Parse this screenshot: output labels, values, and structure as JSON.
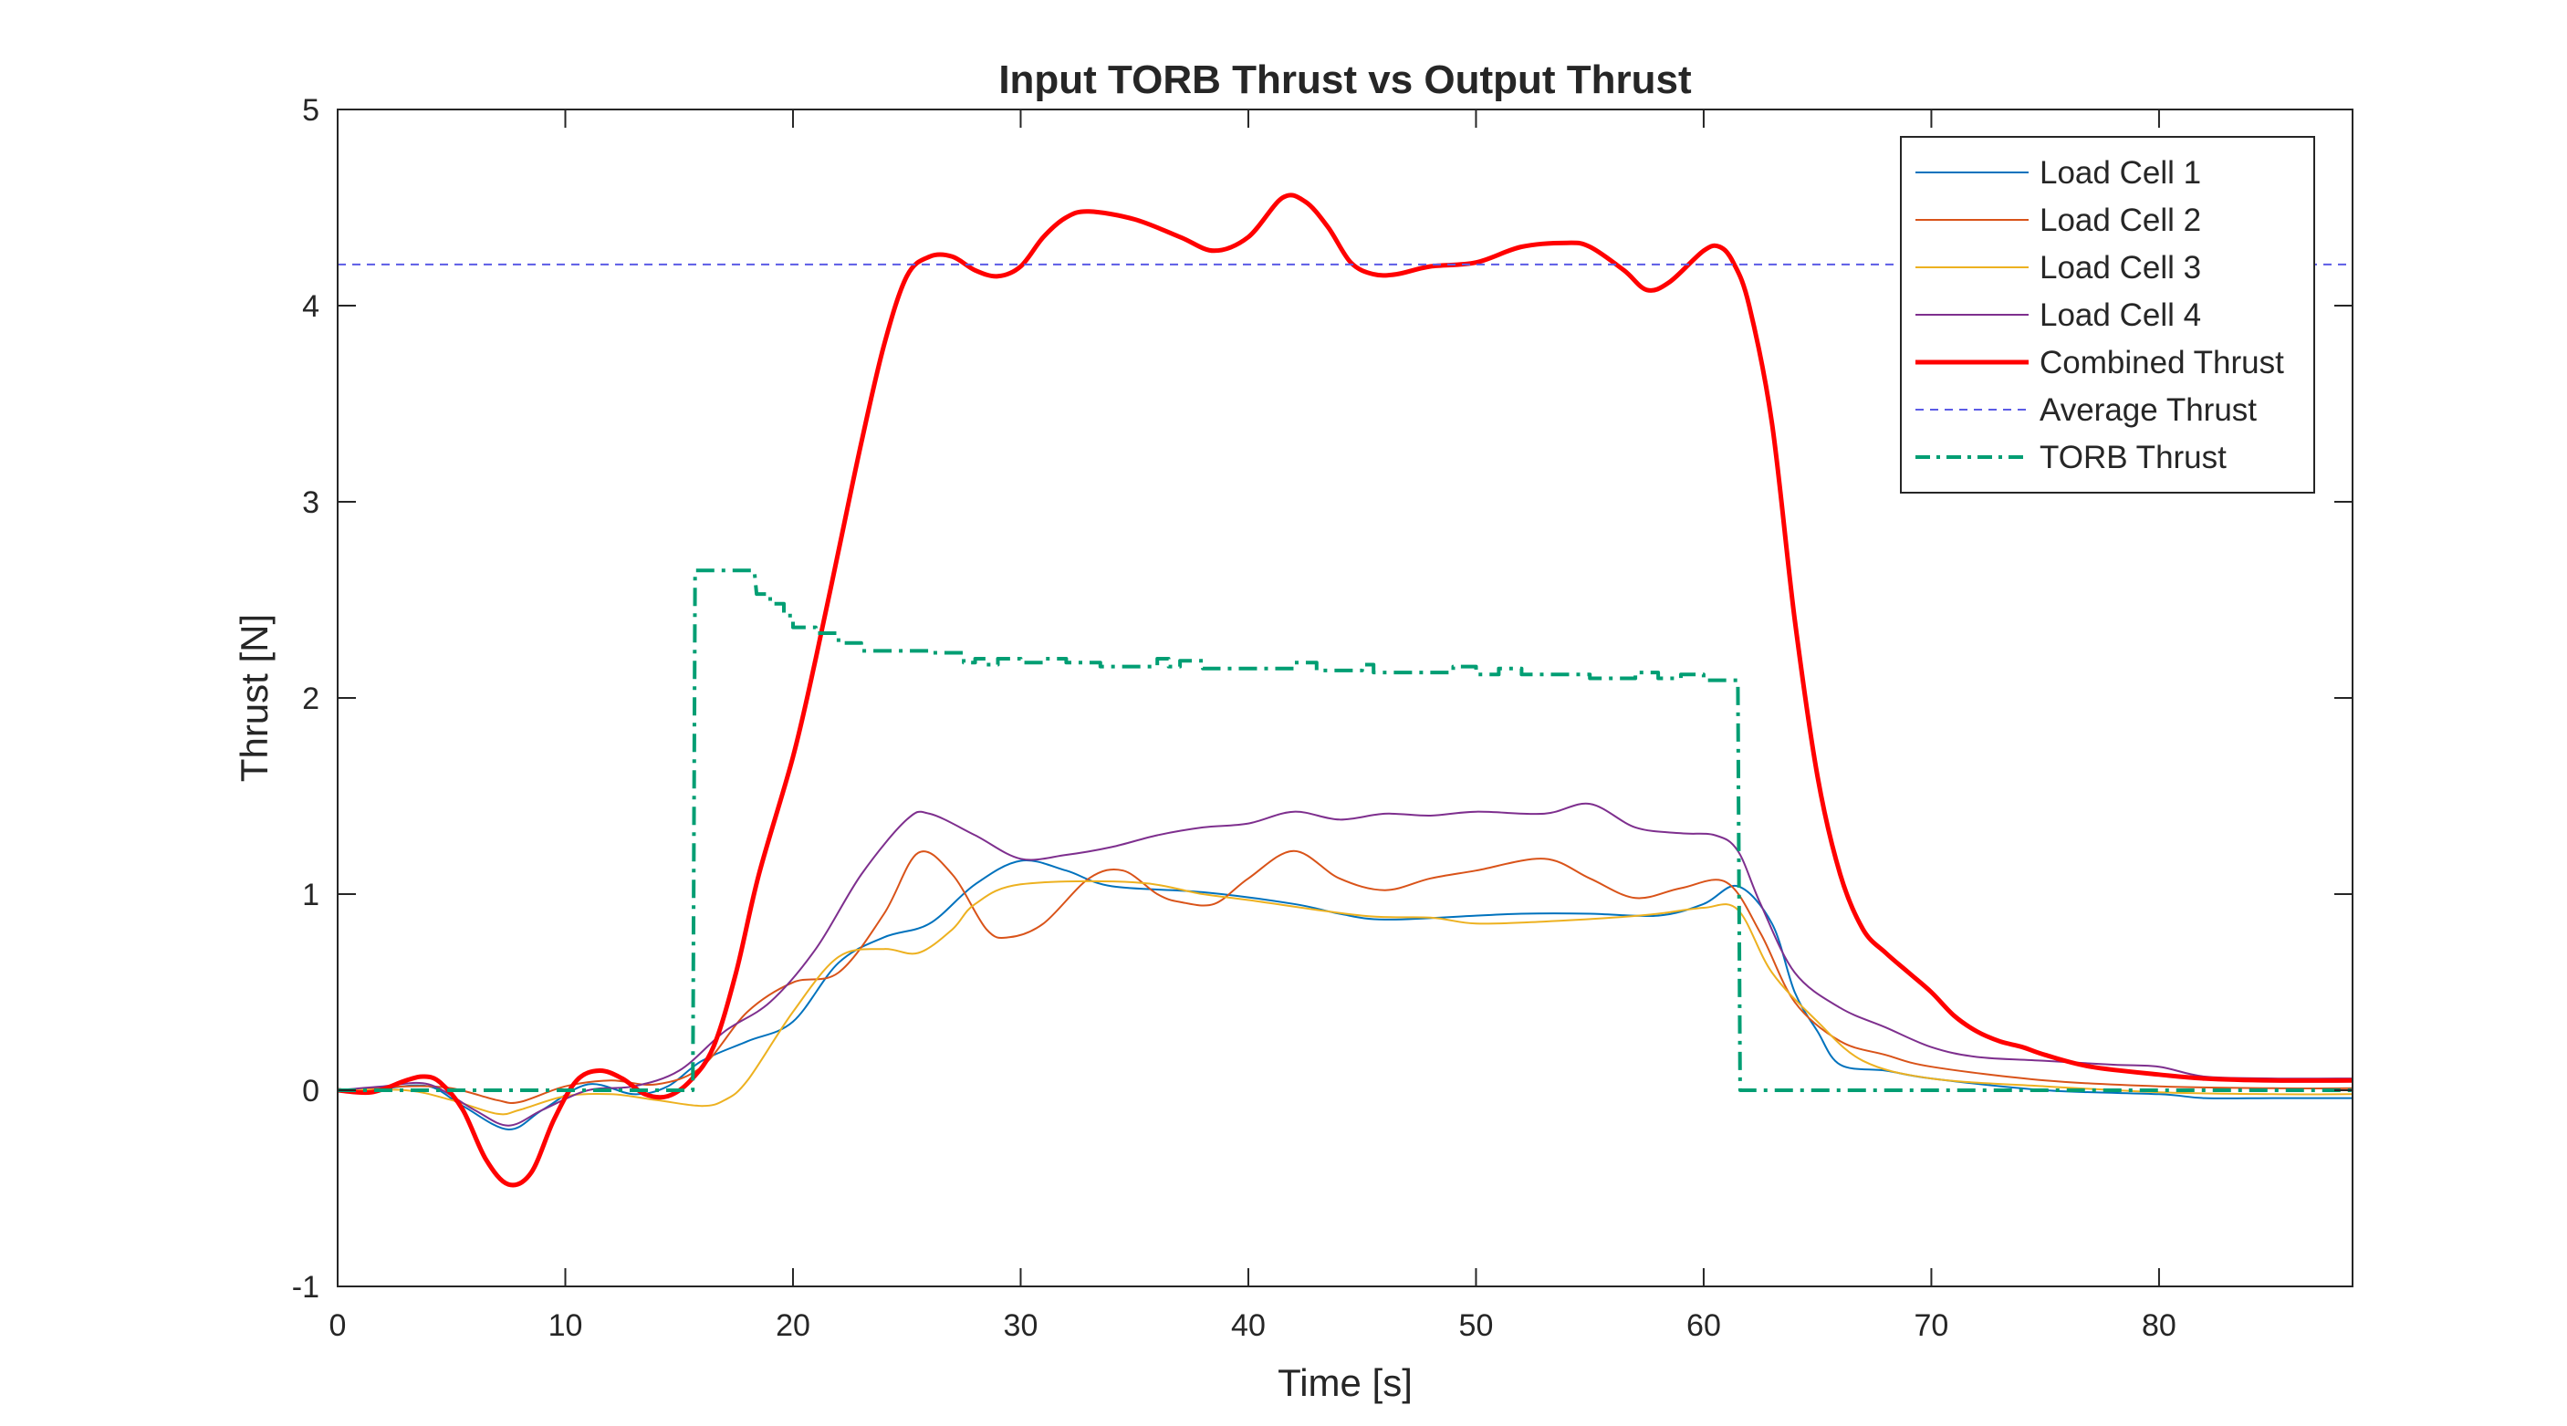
{
  "chart_data": {
    "type": "line",
    "title": "Input TORB Thrust vs Output Thrust",
    "xlabel": "Time [s]",
    "ylabel": "Thrust [N]",
    "xlim": [
      0,
      88.5
    ],
    "ylim": [
      -1,
      5
    ],
    "xticks": [
      0,
      10,
      20,
      30,
      40,
      50,
      60,
      70,
      80
    ],
    "yticks": [
      -1,
      0,
      1,
      2,
      3,
      4,
      5
    ],
    "grid": false,
    "box": true,
    "legend_position": "top-right",
    "series": [
      {
        "name": "Load Cell 1",
        "color": "#0072BD",
        "style": "solid",
        "width": "thin",
        "points": [
          [
            0,
            0
          ],
          [
            2,
            0.01
          ],
          [
            4,
            0.02
          ],
          [
            5.5,
            -0.08
          ],
          [
            7.5,
            -0.2
          ],
          [
            9,
            -0.1
          ],
          [
            11,
            0.03
          ],
          [
            13,
            -0.02
          ],
          [
            14.5,
            0.02
          ],
          [
            16,
            0.15
          ],
          [
            18,
            0.25
          ],
          [
            20,
            0.35
          ],
          [
            22,
            0.65
          ],
          [
            24,
            0.78
          ],
          [
            26,
            0.85
          ],
          [
            28,
            1.05
          ],
          [
            30,
            1.17
          ],
          [
            32,
            1.12
          ],
          [
            34,
            1.04
          ],
          [
            38,
            1.01
          ],
          [
            42,
            0.95
          ],
          [
            44,
            0.9
          ],
          [
            46,
            0.87
          ],
          [
            50,
            0.89
          ],
          [
            52,
            0.9
          ],
          [
            55,
            0.9
          ],
          [
            58,
            0.89
          ],
          [
            60,
            0.95
          ],
          [
            61.5,
            1.04
          ],
          [
            63,
            0.85
          ],
          [
            64,
            0.5
          ],
          [
            65,
            0.3
          ],
          [
            66,
            0.13
          ],
          [
            68,
            0.1
          ],
          [
            70,
            0.06
          ],
          [
            75,
            0.0
          ],
          [
            80,
            -0.02
          ],
          [
            82,
            -0.04
          ],
          [
            85,
            -0.04
          ],
          [
            88.5,
            -0.04
          ]
        ]
      },
      {
        "name": "Load Cell 2",
        "color": "#D95319",
        "style": "solid",
        "width": "thin",
        "points": [
          [
            0,
            0
          ],
          [
            3,
            0.02
          ],
          [
            5,
            0.01
          ],
          [
            7,
            -0.05
          ],
          [
            8,
            -0.06
          ],
          [
            10,
            0.02
          ],
          [
            12,
            0.05
          ],
          [
            14,
            0.03
          ],
          [
            16,
            0.12
          ],
          [
            18,
            0.4
          ],
          [
            20,
            0.55
          ],
          [
            22,
            0.6
          ],
          [
            24,
            0.9
          ],
          [
            25.5,
            1.21
          ],
          [
            27,
            1.1
          ],
          [
            28.5,
            0.82
          ],
          [
            29.5,
            0.78
          ],
          [
            31,
            0.85
          ],
          [
            33,
            1.08
          ],
          [
            34.5,
            1.12
          ],
          [
            36,
            1.0
          ],
          [
            37,
            0.96
          ],
          [
            38.5,
            0.95
          ],
          [
            40,
            1.08
          ],
          [
            42,
            1.22
          ],
          [
            44,
            1.08
          ],
          [
            46,
            1.02
          ],
          [
            48,
            1.08
          ],
          [
            50,
            1.12
          ],
          [
            53,
            1.18
          ],
          [
            55,
            1.08
          ],
          [
            57,
            0.98
          ],
          [
            59,
            1.03
          ],
          [
            61,
            1.06
          ],
          [
            62.5,
            0.8
          ],
          [
            64,
            0.45
          ],
          [
            66,
            0.25
          ],
          [
            68,
            0.18
          ],
          [
            70,
            0.12
          ],
          [
            75,
            0.05
          ],
          [
            80,
            0.02
          ],
          [
            85,
            0.01
          ],
          [
            88.5,
            0.01
          ]
        ]
      },
      {
        "name": "Load Cell 3",
        "color": "#EDB120",
        "style": "solid",
        "width": "thin",
        "points": [
          [
            0,
            0
          ],
          [
            3,
            0.0
          ],
          [
            5,
            -0.05
          ],
          [
            7,
            -0.12
          ],
          [
            8,
            -0.1
          ],
          [
            10,
            -0.03
          ],
          [
            12,
            -0.02
          ],
          [
            14,
            -0.05
          ],
          [
            16,
            -0.08
          ],
          [
            17,
            -0.05
          ],
          [
            18,
            0.05
          ],
          [
            20,
            0.4
          ],
          [
            22,
            0.68
          ],
          [
            24,
            0.72
          ],
          [
            25.5,
            0.7
          ],
          [
            27,
            0.82
          ],
          [
            28,
            0.95
          ],
          [
            30,
            1.05
          ],
          [
            35,
            1.06
          ],
          [
            38,
            1.0
          ],
          [
            40,
            0.97
          ],
          [
            45,
            0.89
          ],
          [
            48,
            0.88
          ],
          [
            50,
            0.85
          ],
          [
            53,
            0.86
          ],
          [
            56,
            0.88
          ],
          [
            58,
            0.9
          ],
          [
            60,
            0.93
          ],
          [
            61.5,
            0.92
          ],
          [
            63,
            0.6
          ],
          [
            65,
            0.35
          ],
          [
            67,
            0.15
          ],
          [
            70,
            0.06
          ],
          [
            75,
            0.02
          ],
          [
            80,
            -0.01
          ],
          [
            85,
            -0.02
          ],
          [
            88.5,
            -0.02
          ]
        ]
      },
      {
        "name": "Load Cell 4",
        "color": "#7E2F8E",
        "style": "solid",
        "width": "thin",
        "points": [
          [
            0,
            0
          ],
          [
            2,
            0.02
          ],
          [
            4,
            0.03
          ],
          [
            6,
            -0.1
          ],
          [
            7.5,
            -0.18
          ],
          [
            9,
            -0.1
          ],
          [
            11,
            0.0
          ],
          [
            13,
            0.02
          ],
          [
            15,
            0.1
          ],
          [
            17,
            0.3
          ],
          [
            19,
            0.45
          ],
          [
            21,
            0.72
          ],
          [
            23,
            1.1
          ],
          [
            25,
            1.38
          ],
          [
            26,
            1.41
          ],
          [
            28,
            1.3
          ],
          [
            30,
            1.18
          ],
          [
            32,
            1.2
          ],
          [
            34,
            1.24
          ],
          [
            36,
            1.3
          ],
          [
            38,
            1.34
          ],
          [
            40,
            1.36
          ],
          [
            42,
            1.42
          ],
          [
            44,
            1.38
          ],
          [
            46,
            1.41
          ],
          [
            48,
            1.4
          ],
          [
            50,
            1.42
          ],
          [
            53,
            1.41
          ],
          [
            55,
            1.46
          ],
          [
            57,
            1.34
          ],
          [
            59,
            1.31
          ],
          [
            60.5,
            1.3
          ],
          [
            61.5,
            1.22
          ],
          [
            62.5,
            0.95
          ],
          [
            64,
            0.6
          ],
          [
            66,
            0.42
          ],
          [
            68,
            0.32
          ],
          [
            70,
            0.22
          ],
          [
            72,
            0.17
          ],
          [
            75,
            0.15
          ],
          [
            78,
            0.13
          ],
          [
            80,
            0.12
          ],
          [
            82,
            0.07
          ],
          [
            85,
            0.06
          ],
          [
            88.5,
            0.06
          ]
        ]
      },
      {
        "name": "Combined Thrust",
        "color": "#FF0000",
        "style": "solid",
        "width": "thick",
        "points": [
          [
            0,
            0
          ],
          [
            1.5,
            -0.01
          ],
          [
            3,
            0.05
          ],
          [
            3.8,
            0.07
          ],
          [
            4.5,
            0.04
          ],
          [
            5.5,
            -0.1
          ],
          [
            6.5,
            -0.35
          ],
          [
            7.5,
            -0.48
          ],
          [
            8.5,
            -0.42
          ],
          [
            9.5,
            -0.15
          ],
          [
            10.5,
            0.05
          ],
          [
            11.5,
            0.1
          ],
          [
            12.5,
            0.06
          ],
          [
            13.5,
            -0.02
          ],
          [
            14.5,
            -0.03
          ],
          [
            15.5,
            0.05
          ],
          [
            16.5,
            0.22
          ],
          [
            17.5,
            0.6
          ],
          [
            18.5,
            1.1
          ],
          [
            20,
            1.7
          ],
          [
            21,
            2.2
          ],
          [
            22,
            2.75
          ],
          [
            23,
            3.3
          ],
          [
            24,
            3.8
          ],
          [
            25,
            4.15
          ],
          [
            26,
            4.25
          ],
          [
            27,
            4.25
          ],
          [
            28,
            4.18
          ],
          [
            29,
            4.15
          ],
          [
            30,
            4.2
          ],
          [
            31,
            4.35
          ],
          [
            32,
            4.45
          ],
          [
            33,
            4.48
          ],
          [
            35,
            4.44
          ],
          [
            37,
            4.35
          ],
          [
            38.5,
            4.28
          ],
          [
            40,
            4.35
          ],
          [
            41.5,
            4.55
          ],
          [
            42.5,
            4.53
          ],
          [
            43.5,
            4.4
          ],
          [
            44.5,
            4.22
          ],
          [
            45.5,
            4.16
          ],
          [
            46.5,
            4.16
          ],
          [
            48,
            4.2
          ],
          [
            50,
            4.22
          ],
          [
            52,
            4.3
          ],
          [
            54,
            4.32
          ],
          [
            55,
            4.3
          ],
          [
            56.5,
            4.18
          ],
          [
            57.5,
            4.08
          ],
          [
            58.5,
            4.12
          ],
          [
            60,
            4.28
          ],
          [
            60.7,
            4.3
          ],
          [
            61.3,
            4.22
          ],
          [
            62,
            4.0
          ],
          [
            63,
            3.4
          ],
          [
            64,
            2.4
          ],
          [
            65,
            1.6
          ],
          [
            66,
            1.1
          ],
          [
            67,
            0.82
          ],
          [
            68,
            0.7
          ],
          [
            69,
            0.6
          ],
          [
            70,
            0.5
          ],
          [
            71,
            0.38
          ],
          [
            72,
            0.3
          ],
          [
            73,
            0.25
          ],
          [
            74,
            0.22
          ],
          [
            75,
            0.18
          ],
          [
            77,
            0.12
          ],
          [
            80,
            0.08
          ],
          [
            82,
            0.06
          ],
          [
            85,
            0.05
          ],
          [
            88.5,
            0.05
          ]
        ]
      },
      {
        "name": "Average Thrust",
        "color": "#5B5BE6",
        "style": "dashed",
        "width": "thin",
        "points": [
          [
            0,
            4.21
          ],
          [
            88.5,
            4.21
          ]
        ]
      },
      {
        "name": "TORB Thrust",
        "color": "#009E73",
        "style": "dashdot",
        "width": "medium",
        "points": [
          [
            0,
            0
          ],
          [
            15.6,
            0
          ],
          [
            15.7,
            2.65
          ],
          [
            18.3,
            2.65
          ],
          [
            18.4,
            2.53
          ],
          [
            19,
            2.53
          ],
          [
            19,
            2.48
          ],
          [
            19.6,
            2.48
          ],
          [
            19.6,
            2.42
          ],
          [
            20,
            2.42
          ],
          [
            20,
            2.36
          ],
          [
            21,
            2.36
          ],
          [
            21,
            2.33
          ],
          [
            22,
            2.33
          ],
          [
            22,
            2.28
          ],
          [
            23,
            2.28
          ],
          [
            23,
            2.24
          ],
          [
            26,
            2.24
          ],
          [
            26,
            2.23
          ],
          [
            27.5,
            2.23
          ],
          [
            27.5,
            2.18
          ],
          [
            28,
            2.18
          ],
          [
            28,
            2.2
          ],
          [
            28.5,
            2.2
          ],
          [
            28.5,
            2.17
          ],
          [
            29,
            2.17
          ],
          [
            29,
            2.2
          ],
          [
            30,
            2.2
          ],
          [
            30,
            2.18
          ],
          [
            31,
            2.18
          ],
          [
            31,
            2.2
          ],
          [
            32,
            2.2
          ],
          [
            32,
            2.18
          ],
          [
            33.5,
            2.18
          ],
          [
            33.5,
            2.16
          ],
          [
            36,
            2.16
          ],
          [
            36,
            2.2
          ],
          [
            36.5,
            2.2
          ],
          [
            36.5,
            2.16
          ],
          [
            37,
            2.16
          ],
          [
            37,
            2.19
          ],
          [
            38,
            2.19
          ],
          [
            38,
            2.15
          ],
          [
            42,
            2.15
          ],
          [
            42,
            2.18
          ],
          [
            43,
            2.18
          ],
          [
            43,
            2.14
          ],
          [
            45,
            2.14
          ],
          [
            45,
            2.17
          ],
          [
            45.5,
            2.17
          ],
          [
            45.5,
            2.13
          ],
          [
            49,
            2.13
          ],
          [
            49,
            2.16
          ],
          [
            50,
            2.16
          ],
          [
            50,
            2.12
          ],
          [
            51,
            2.12
          ],
          [
            51,
            2.15
          ],
          [
            52,
            2.15
          ],
          [
            52,
            2.12
          ],
          [
            55,
            2.12
          ],
          [
            55,
            2.1
          ],
          [
            57,
            2.1
          ],
          [
            57,
            2.13
          ],
          [
            58,
            2.13
          ],
          [
            58,
            2.1
          ],
          [
            59,
            2.1
          ],
          [
            59,
            2.12
          ],
          [
            60,
            2.12
          ],
          [
            60,
            2.09
          ],
          [
            61.5,
            2.09
          ],
          [
            61.6,
            0
          ],
          [
            88.5,
            0
          ]
        ]
      }
    ]
  }
}
